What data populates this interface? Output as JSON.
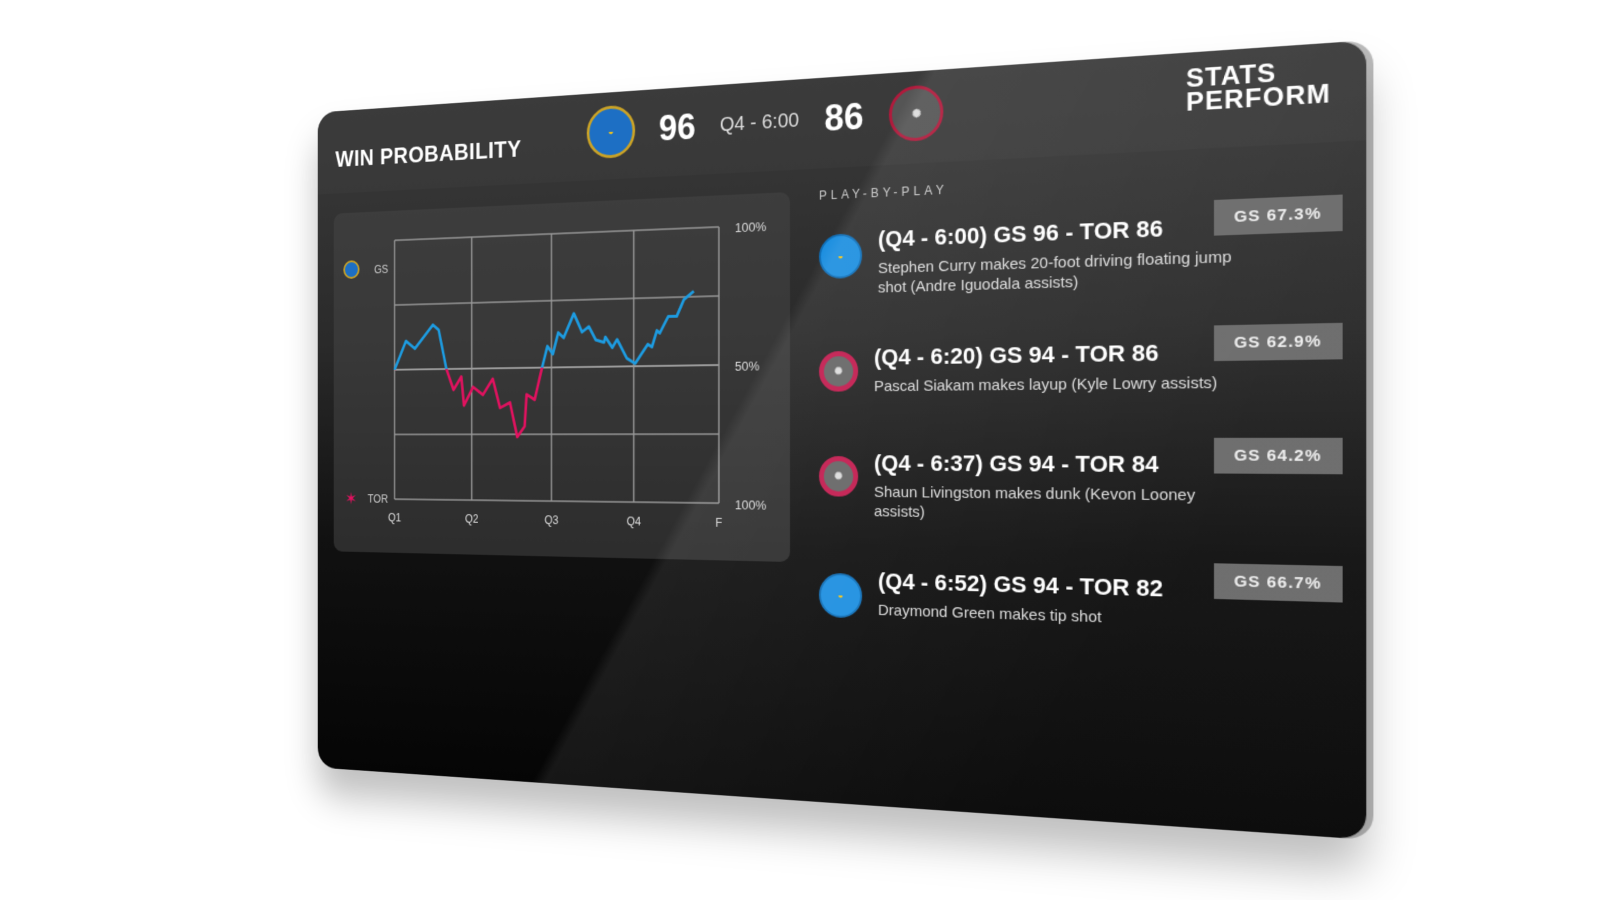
{
  "header": {
    "title": "WIN PROBABILITY",
    "home": {
      "abbr": "GS",
      "score": "96",
      "logo_icon": "warriors-logo"
    },
    "away": {
      "abbr": "TOR",
      "score": "86",
      "logo_icon": "raptors-logo"
    },
    "clock": "Q4 - 6:00",
    "brand": "STATS PERFORM"
  },
  "colors": {
    "gs": "#1d9be0",
    "tor": "#e0125f",
    "grid": "#9a9a9a"
  },
  "chart_data": {
    "type": "line",
    "title": "",
    "y_top_label": "GS",
    "y_bottom_label": "TOR",
    "right_tick_labels": [
      "100%",
      "50%",
      "100%"
    ],
    "x_tick_labels": [
      "Q1",
      "Q2",
      "Q3",
      "Q4",
      "F"
    ],
    "xlim": [
      0,
      48
    ],
    "ylim": [
      0,
      100
    ],
    "grid": true,
    "x": [
      0,
      1.8,
      3.2,
      6,
      6.9,
      8.1,
      9.2,
      10.4,
      10.8,
      12.2,
      13.7,
      15.2,
      16.3,
      17.8,
      18.9,
      20,
      20.3,
      21.5,
      22.6,
      23.4,
      24.2,
      25,
      25.8,
      27.3,
      28.5,
      29.5,
      30.5,
      31.7,
      31.9,
      32.9,
      33.6,
      35,
      36.2,
      38,
      38.6,
      39.3,
      39.7,
      40.9,
      42.1,
      43.1,
      44.5
    ],
    "series": [
      {
        "values": [
          50,
          61,
          58,
          67,
          65,
          50,
          42,
          47,
          36,
          43,
          40,
          46,
          35,
          37,
          24,
          28,
          40,
          38,
          50,
          58,
          55,
          63,
          61,
          70,
          63,
          65,
          60,
          59,
          61,
          57,
          60,
          53,
          51,
          58,
          57,
          63,
          62,
          68,
          68,
          74,
          77
        ]
      }
    ]
  },
  "play_by_play": {
    "label": "PLAY-BY-PLAY",
    "items": [
      {
        "team": "gs",
        "headline": "(Q4 - 6:00) GS 96 - TOR 86",
        "description": "Stephen Curry makes 20-foot driving floating jump shot (Andre Iguodala assists)",
        "prob": "GS  67.3%"
      },
      {
        "team": "tor",
        "headline": "(Q4 - 6:20) GS 94 - TOR 86",
        "description": "Pascal Siakam makes layup (Kyle Lowry assists)",
        "prob": "GS  62.9%"
      },
      {
        "team": "tor",
        "headline": "(Q4 - 6:37) GS 94 - TOR 84",
        "description": "Shaun Livingston makes dunk (Kevon Looney assists)",
        "prob": "GS  64.2%"
      },
      {
        "team": "gs",
        "headline": "(Q4 - 6:52) GS 94 - TOR 82",
        "description": "Draymond Green makes tip shot",
        "prob": "GS  66.7%"
      }
    ]
  }
}
